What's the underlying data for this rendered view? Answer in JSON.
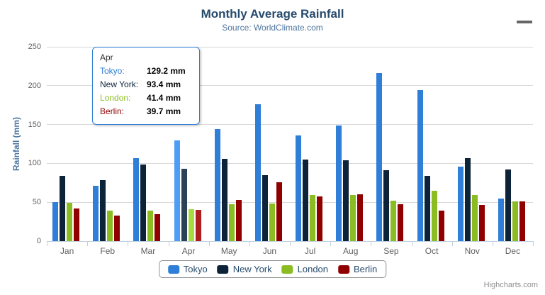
{
  "chart_data": {
    "type": "bar",
    "title": "Monthly Average Rainfall",
    "subtitle": "Source: WorldClimate.com",
    "ylabel": "Rainfall (mm)",
    "ylim": [
      0,
      250
    ],
    "yticks": [
      0,
      50,
      100,
      150,
      200,
      250
    ],
    "grid": true,
    "legend_position": "bottom",
    "hovered_category": "Apr",
    "categories": [
      "Jan",
      "Feb",
      "Mar",
      "Apr",
      "May",
      "Jun",
      "Jul",
      "Aug",
      "Sep",
      "Oct",
      "Nov",
      "Dec"
    ],
    "series": [
      {
        "name": "Tokyo",
        "color": "#2f7ed8",
        "values": [
          49.9,
          71.5,
          106.4,
          129.2,
          144.0,
          176.0,
          135.6,
          148.5,
          216.4,
          194.1,
          95.6,
          54.4
        ]
      },
      {
        "name": "New York",
        "color": "#0d233a",
        "values": [
          83.6,
          78.8,
          98.5,
          93.4,
          106.0,
          84.5,
          105.0,
          104.3,
          91.2,
          83.5,
          106.6,
          92.3
        ]
      },
      {
        "name": "London",
        "color": "#8bbc21",
        "values": [
          48.9,
          38.8,
          39.3,
          41.4,
          47.0,
          48.3,
          59.0,
          59.6,
          52.4,
          65.2,
          59.3,
          51.2
        ]
      },
      {
        "name": "Berlin",
        "color": "#910000",
        "values": [
          42.4,
          33.2,
          34.5,
          39.7,
          52.6,
          75.5,
          57.4,
          60.4,
          47.6,
          39.1,
          46.8,
          51.1
        ]
      }
    ]
  },
  "tooltip": {
    "header": "Apr",
    "rows": [
      {
        "name": "Tokyo:",
        "color": "#2f7ed8",
        "value": "129.2 mm"
      },
      {
        "name": "New York:",
        "color": "#0d233a",
        "value": "93.4 mm"
      },
      {
        "name": "London:",
        "color": "#8bbc21",
        "value": "41.4 mm"
      },
      {
        "name": "Berlin:",
        "color": "#910000",
        "value": "39.7 mm"
      }
    ]
  },
  "credits": "Highcharts.com",
  "colors": {
    "title": "#274b6d",
    "subtitle": "#4d759e",
    "axis_label": "#606060",
    "axis_line": "#c0d0e0",
    "gridline": "#d8d8d8",
    "legend_border": "#909090",
    "tooltip_border": "#2f7ed8",
    "credits": "#909090"
  }
}
